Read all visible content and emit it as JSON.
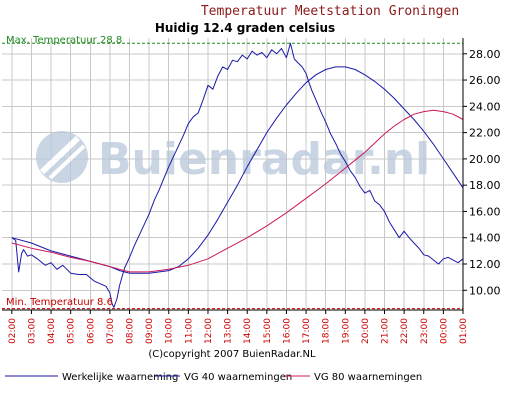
{
  "chart_data": {
    "type": "line",
    "title": "Temperatuur Meetstation Groningen",
    "subtitle": "Huidig 12.4 graden celsius",
    "watermark": "Buienradar.nl",
    "copyright": "(C)copyright 2007 BuienRadar.NL",
    "ylim": [
      8.5,
      29.2
    ],
    "yticks": [
      "10.00",
      "12.00",
      "14.00",
      "16.00",
      "18.00",
      "20.00",
      "22.00",
      "24.00",
      "26.00",
      "28.00"
    ],
    "categories": [
      "02:00",
      "03:00",
      "04:00",
      "05:00",
      "06:00",
      "07:00",
      "08:00",
      "09:00",
      "10:00",
      "11:00",
      "12:00",
      "13:00",
      "14:00",
      "15:00",
      "16:00",
      "17:00",
      "18:00",
      "19:00",
      "20:00",
      "21:00",
      "22:00",
      "23:00",
      "00:00",
      "01:00"
    ],
    "max_label": "Max. Temperatuur 28.8",
    "max_value": 28.8,
    "min_label": "Min. Temperatuur 8.6",
    "min_value": 8.6,
    "grid": true,
    "legend_position": "bottom",
    "colors": {
      "max": "#228b22",
      "min": "#cc0000",
      "grid": "#c8c8c8",
      "axis": "#000000",
      "watermark": "#b9c7dc"
    },
    "series": [
      {
        "name": "Werkelijke waarneming",
        "color": "#1a1aa8",
        "x": [
          1.0,
          1.2,
          1.35,
          1.5,
          1.6,
          1.8,
          2.0,
          2.3,
          2.7,
          3.0,
          3.3,
          3.6,
          4.0,
          4.4,
          4.8,
          5.2,
          5.5,
          5.8,
          6.0,
          6.1,
          6.2,
          6.35,
          6.5,
          6.75,
          7.0,
          7.25,
          7.5,
          7.75,
          8.0,
          8.25,
          8.5,
          8.75,
          9.0,
          9.25,
          9.5,
          9.75,
          10.0,
          10.25,
          10.5,
          10.75,
          11.0,
          11.25,
          11.5,
          11.75,
          12.0,
          12.25,
          12.5,
          12.75,
          13.0,
          13.25,
          13.5,
          13.75,
          14.0,
          14.25,
          14.5,
          14.75,
          15.0,
          15.2,
          15.4,
          15.6,
          15.8,
          16.0,
          16.15,
          16.3,
          16.5,
          16.75,
          17.0,
          17.25,
          17.5,
          17.75,
          18.0,
          18.25,
          18.5,
          18.75,
          19.0,
          19.25,
          19.5,
          19.75,
          20.0,
          20.25,
          20.5,
          20.75,
          21.0,
          21.25,
          21.5,
          21.75,
          22.0,
          22.25,
          22.5,
          22.75,
          23.0,
          23.25,
          23.5,
          23.75,
          24.0
        ],
        "values": [
          14.0,
          13.8,
          11.4,
          12.8,
          13.1,
          12.6,
          12.7,
          12.4,
          11.9,
          12.1,
          11.6,
          11.9,
          11.3,
          11.2,
          11.2,
          10.7,
          10.5,
          10.3,
          9.8,
          9.0,
          8.7,
          9.3,
          10.4,
          11.7,
          12.5,
          13.4,
          14.2,
          15.0,
          15.8,
          16.8,
          17.6,
          18.5,
          19.4,
          20.2,
          21.0,
          21.8,
          22.7,
          23.2,
          23.5,
          24.5,
          25.6,
          25.3,
          26.3,
          27.0,
          26.8,
          27.5,
          27.4,
          27.9,
          27.6,
          28.2,
          27.9,
          28.1,
          27.7,
          28.3,
          28.0,
          28.4,
          27.7,
          28.8,
          27.6,
          27.3,
          27.0,
          26.5,
          25.8,
          25.2,
          24.5,
          23.6,
          22.8,
          21.9,
          21.2,
          20.4,
          19.8,
          19.1,
          18.6,
          17.9,
          17.4,
          17.6,
          16.8,
          16.5,
          16.0,
          15.2,
          14.6,
          14.0,
          14.5,
          14.0,
          13.6,
          13.2,
          12.7,
          12.6,
          12.3,
          12.0,
          12.4,
          12.5,
          12.3,
          12.1,
          12.4
        ]
      },
      {
        "name": "VG 40 waarnemingen",
        "color": "#1a1aa8",
        "x": [
          1.0,
          2.0,
          3.0,
          4.0,
          5.0,
          6.0,
          6.5,
          7.0,
          8.0,
          9.0,
          9.5,
          10.0,
          10.5,
          11.0,
          11.5,
          12.0,
          12.5,
          13.0,
          13.5,
          14.0,
          14.5,
          15.0,
          15.5,
          16.0,
          16.5,
          17.0,
          17.5,
          18.0,
          18.5,
          19.0,
          19.5,
          20.0,
          20.5,
          21.0,
          21.5,
          22.0,
          22.5,
          23.0,
          23.5,
          24.0
        ],
        "values": [
          14.0,
          13.6,
          13.0,
          12.6,
          12.2,
          11.8,
          11.5,
          11.3,
          11.3,
          11.5,
          11.8,
          12.4,
          13.2,
          14.2,
          15.4,
          16.7,
          18.0,
          19.4,
          20.7,
          22.0,
          23.1,
          24.1,
          25.0,
          25.8,
          26.4,
          26.8,
          27.0,
          27.0,
          26.8,
          26.4,
          25.9,
          25.3,
          24.6,
          23.8,
          23.0,
          22.1,
          21.1,
          20.0,
          18.9,
          17.8
        ]
      },
      {
        "name": "VG 80 waarnemingen",
        "color": "#cc1a5a",
        "x": [
          1.0,
          2.0,
          3.0,
          4.0,
          5.0,
          6.0,
          6.5,
          7.0,
          7.5,
          8.0,
          9.0,
          10.0,
          11.0,
          12.0,
          13.0,
          14.0,
          15.0,
          16.0,
          17.0,
          18.0,
          18.5,
          19.0,
          19.5,
          20.0,
          20.5,
          21.0,
          21.5,
          22.0,
          22.5,
          23.0,
          23.5,
          24.0
        ],
        "values": [
          13.6,
          13.2,
          12.9,
          12.5,
          12.2,
          11.8,
          11.6,
          11.4,
          11.4,
          11.4,
          11.6,
          11.9,
          12.4,
          13.2,
          14.0,
          14.9,
          15.9,
          17.0,
          18.1,
          19.3,
          19.9,
          20.5,
          21.2,
          21.9,
          22.5,
          23.0,
          23.4,
          23.6,
          23.7,
          23.6,
          23.4,
          23.0
        ]
      }
    ]
  }
}
